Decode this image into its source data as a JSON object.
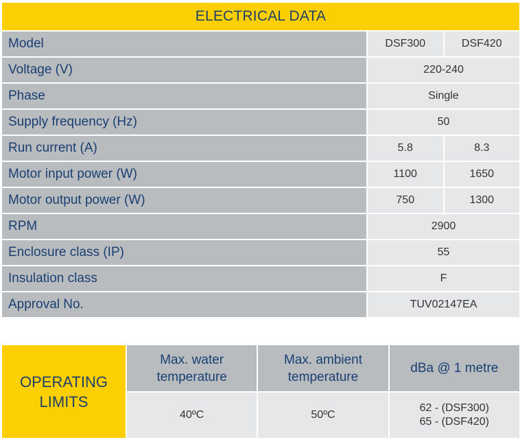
{
  "electrical": {
    "title": "ELECTRICAL DATA",
    "rows": [
      {
        "label": "Model",
        "values": [
          "DSF300",
          "DSF420"
        ]
      },
      {
        "label": "Voltage (V)",
        "values": [
          "220-240"
        ]
      },
      {
        "label": "Phase",
        "values": [
          "Single"
        ]
      },
      {
        "label": "Supply frequency (Hz)",
        "values": [
          "50"
        ]
      },
      {
        "label": "Run current (A)",
        "values": [
          "5.8",
          "8.3"
        ]
      },
      {
        "label": "Motor input power (W)",
        "values": [
          "1100",
          "1650"
        ]
      },
      {
        "label": "Motor output power (W)",
        "values": [
          "750",
          "1300"
        ]
      },
      {
        "label": "RPM",
        "values": [
          "2900"
        ]
      },
      {
        "label": "Enclosure class (IP)",
        "values": [
          "55"
        ]
      },
      {
        "label": "Insulation class",
        "values": [
          "F"
        ]
      },
      {
        "label": "Approval No.",
        "values": [
          "TUV02147EA"
        ]
      }
    ]
  },
  "operating": {
    "title": "OPERATING\nLIMITS",
    "columns": [
      {
        "header": "Max. water\ntemperature",
        "value": "40ºC"
      },
      {
        "header": "Max. ambient\ntemperature",
        "value": "50ºC"
      },
      {
        "header": "dBa @ 1 metre",
        "value": "62 - (DSF300)\n65 - (DSF420)"
      }
    ]
  },
  "colors": {
    "accent_yellow": "#fcd000",
    "label_grey": "#b9bcbf",
    "value_grey": "#e6e7e8",
    "label_text": "#1a3f73"
  }
}
